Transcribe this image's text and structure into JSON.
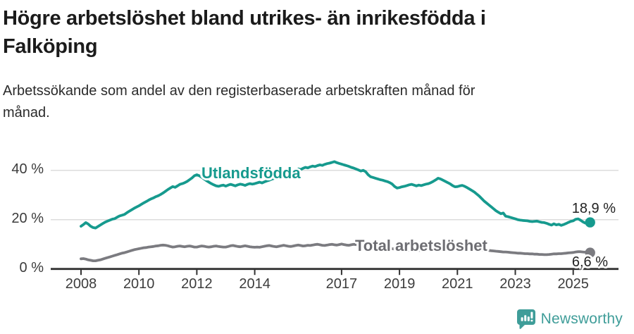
{
  "header": {
    "title": "Högre arbetslöshet bland utrikes- än inrikesfödda i\nFalköping",
    "subtitle": "Arbetssökande som andel av den registerbaserade arbetskraften månad för\nmånad."
  },
  "footer": {
    "brand": "Newsworthy"
  },
  "colors": {
    "accent_teal": "#169a8e",
    "line_gray": "#7b7b80",
    "label_gray": "#6d6d72",
    "grid": "#dcdcdc",
    "axis": "#333333",
    "tick_text": "#3c3c3c",
    "title_text": "#1b1b1b",
    "value_text": "#222222",
    "logo_teal": "#3f9d99"
  },
  "chart_data": {
    "type": "line",
    "title": "Högre arbetslöshet bland utrikes- än inrikesfödda i Falköping",
    "subtitle": "Arbetssökande som andel av den registerbaserade arbetskraften månad för månad.",
    "xlabel": "",
    "ylabel": "",
    "x_start": "2008-01",
    "x_end": "2025-08",
    "frequency": "monthly",
    "grid": true,
    "legend_position": "inline-labels",
    "ylim": [
      0,
      46
    ],
    "yticks": [
      {
        "value": 0,
        "label": "0 %"
      },
      {
        "value": 20,
        "label": "20 %"
      },
      {
        "value": 40,
        "label": "40 %"
      }
    ],
    "xticks": [
      {
        "year": 2008,
        "label": "2008"
      },
      {
        "year": 2010,
        "label": "2010"
      },
      {
        "year": 2012,
        "label": "2012"
      },
      {
        "year": 2014,
        "label": "2014"
      },
      {
        "year": 2017,
        "label": "2017"
      },
      {
        "year": 2019,
        "label": "2019"
      },
      {
        "year": 2021,
        "label": "2021"
      },
      {
        "year": 2023,
        "label": "2023"
      },
      {
        "year": 2025,
        "label": "2025"
      }
    ],
    "series": [
      {
        "name": "Utlandsfödda",
        "color": "#169a8e",
        "end_label": "18,9 %",
        "end_value": 18.9,
        "values": [
          17.3,
          18.0,
          18.8,
          18.2,
          17.3,
          16.8,
          16.6,
          17.2,
          17.8,
          18.4,
          19.0,
          19.4,
          19.8,
          20.2,
          20.4,
          21.0,
          21.5,
          21.8,
          22.1,
          22.8,
          23.4,
          24.0,
          24.6,
          25.1,
          25.6,
          26.2,
          26.8,
          27.3,
          27.9,
          28.4,
          28.8,
          29.3,
          29.7,
          30.2,
          30.8,
          31.5,
          32.2,
          32.8,
          33.4,
          33.1,
          33.7,
          34.3,
          34.6,
          35.0,
          35.5,
          36.2,
          36.9,
          37.8,
          38.2,
          37.8,
          37.2,
          36.5,
          35.8,
          35.2,
          34.6,
          34.1,
          33.7,
          33.5,
          33.8,
          34.0,
          33.6,
          34.0,
          34.3,
          34.0,
          33.7,
          34.1,
          34.4,
          34.2,
          33.9,
          34.3,
          34.6,
          34.4,
          34.6,
          34.9,
          35.2,
          34.9,
          35.3,
          35.7,
          36.0,
          36.4,
          36.7,
          37.1,
          37.4,
          37.8,
          38.2,
          38.6,
          39.0,
          39.4,
          39.8,
          40.2,
          40.6,
          40.3,
          40.8,
          41.2,
          41.0,
          41.4,
          41.7,
          41.5,
          41.9,
          42.2,
          42.0,
          42.4,
          42.7,
          42.9,
          43.2,
          43.5,
          43.1,
          42.8,
          42.5,
          42.2,
          41.9,
          41.6,
          41.2,
          40.9,
          40.5,
          40.1,
          39.7,
          40.0,
          39.4,
          38.2,
          37.4,
          37.1,
          36.8,
          36.5,
          36.2,
          36.0,
          35.7,
          35.4,
          35.0,
          34.4,
          33.4,
          32.8,
          33.0,
          33.3,
          33.5,
          33.8,
          34.1,
          34.3,
          34.0,
          33.7,
          34.0,
          33.8,
          34.1,
          34.4,
          34.6,
          35.0,
          35.5,
          36.1,
          36.8,
          36.5,
          36.0,
          35.5,
          35.0,
          34.5,
          33.8,
          33.3,
          33.4,
          33.7,
          33.9,
          33.5,
          33.0,
          32.4,
          31.8,
          31.2,
          30.4,
          29.6,
          28.6,
          27.6,
          26.8,
          26.0,
          25.2,
          24.4,
          23.6,
          23.0,
          22.4,
          22.7,
          21.4,
          21.2,
          20.9,
          20.6,
          20.3,
          20.0,
          19.8,
          19.7,
          19.6,
          19.5,
          19.3,
          19.2,
          19.3,
          19.4,
          19.1,
          18.9,
          18.8,
          18.5,
          18.1,
          17.8,
          18.3,
          17.9,
          18.1,
          17.7,
          18.0,
          18.4,
          18.9,
          19.3,
          19.5,
          20.1,
          20.3,
          19.8,
          19.1,
          18.6,
          18.7,
          18.9
        ]
      },
      {
        "name": "Total arbetslöshet",
        "color": "#7b7b80",
        "end_label": "6,6 %",
        "end_value": 6.6,
        "values": [
          4.1,
          4.2,
          4.0,
          3.7,
          3.5,
          3.3,
          3.3,
          3.5,
          3.7,
          4.0,
          4.3,
          4.6,
          4.9,
          5.2,
          5.5,
          5.8,
          6.1,
          6.4,
          6.6,
          6.9,
          7.2,
          7.5,
          7.8,
          8.0,
          8.2,
          8.4,
          8.6,
          8.7,
          8.9,
          9.0,
          9.1,
          9.3,
          9.4,
          9.6,
          9.7,
          9.6,
          9.4,
          9.1,
          8.9,
          9.0,
          9.2,
          9.3,
          9.1,
          9.0,
          9.2,
          9.3,
          9.1,
          8.9,
          8.9,
          9.1,
          9.3,
          9.2,
          9.0,
          8.9,
          9.0,
          9.2,
          9.3,
          9.1,
          9.0,
          8.9,
          8.9,
          9.1,
          9.4,
          9.5,
          9.3,
          9.1,
          9.0,
          9.2,
          9.4,
          9.2,
          9.0,
          8.9,
          8.8,
          8.9,
          8.8,
          9.0,
          9.2,
          9.4,
          9.5,
          9.3,
          9.1,
          9.0,
          9.2,
          9.4,
          9.6,
          9.4,
          9.2,
          9.1,
          9.3,
          9.5,
          9.7,
          9.5,
          9.3,
          9.4,
          9.6,
          9.5,
          9.7,
          9.9,
          10.0,
          9.8,
          9.6,
          9.5,
          9.7,
          9.9,
          10.0,
          9.8,
          9.7,
          9.9,
          10.1,
          9.9,
          9.7,
          9.6,
          9.8,
          10.0,
          9.9,
          9.7,
          9.5,
          9.4,
          9.3,
          9.2,
          9.1,
          9.0,
          8.9,
          8.8,
          8.7,
          8.6,
          8.5,
          8.4,
          8.3,
          8.2,
          8.1,
          8.0,
          7.9,
          7.9,
          7.8,
          7.8,
          7.7,
          7.7,
          7.6,
          7.6,
          7.5,
          7.6,
          7.7,
          7.8,
          8.0,
          8.3,
          8.8,
          9.4,
          9.7,
          9.9,
          9.8,
          9.6,
          9.4,
          9.2,
          9.0,
          8.8,
          8.7,
          8.6,
          8.5,
          8.3,
          8.1,
          8.0,
          7.9,
          7.8,
          7.7,
          7.7,
          7.6,
          7.6,
          7.6,
          7.5,
          7.4,
          7.3,
          7.2,
          7.1,
          7.0,
          6.9,
          6.9,
          6.8,
          6.7,
          6.6,
          6.5,
          6.4,
          6.4,
          6.3,
          6.2,
          6.2,
          6.1,
          6.1,
          6.0,
          6.0,
          5.9,
          5.9,
          5.8,
          5.8,
          5.9,
          6.0,
          6.1,
          6.1,
          6.2,
          6.2,
          6.3,
          6.4,
          6.5,
          6.6,
          6.7,
          6.9,
          7.0,
          7.0,
          6.9,
          6.8,
          6.7,
          6.6
        ]
      }
    ]
  }
}
